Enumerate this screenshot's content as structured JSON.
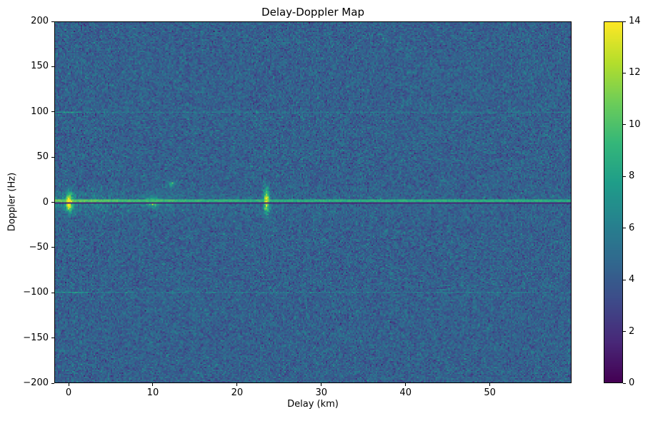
{
  "figure": {
    "background": "#ffffff"
  },
  "chart_data": {
    "type": "heatmap",
    "title": "Delay-Doppler Map",
    "xlabel": "Delay (km)",
    "ylabel": "Doppler (Hz)",
    "xlim": [
      -1.7,
      59.7
    ],
    "ylim": [
      -200,
      200
    ],
    "xticks": {
      "values": [
        0,
        10,
        20,
        30,
        40,
        50
      ],
      "labels": [
        "0",
        "10",
        "20",
        "30",
        "40",
        "50"
      ]
    },
    "yticks": {
      "values": [
        200,
        150,
        100,
        50,
        0,
        -50,
        -100,
        -150,
        -200
      ],
      "labels": [
        "200",
        "150",
        "100",
        "50",
        "0",
        "−50",
        "−100",
        "−150",
        "−200"
      ]
    },
    "colormap": "viridis",
    "colorbar": {
      "min": 0,
      "max": 14,
      "tick_values": [
        14,
        12,
        10,
        8,
        6,
        4,
        2,
        0
      ],
      "tick_labels": [
        "14",
        "12",
        "10",
        "8",
        "6",
        "4",
        "2",
        "0"
      ]
    },
    "grid": {
      "cols": 362,
      "rows": 254
    },
    "noise": {
      "mean": 4.3,
      "std": 0.85,
      "seed": 7
    },
    "features": [
      {
        "kind": "haze",
        "name": "clutter-doppler-spread",
        "doppler": 0,
        "sigma_doppler": 8,
        "amp": 2.0,
        "decay_km": 18
      },
      {
        "kind": "hline",
        "name": "doppler-ambiguity-line-positive",
        "doppler": 100,
        "amp": 1.5,
        "spot_delay": 0,
        "spot_amp": 2.4
      },
      {
        "kind": "hline",
        "name": "doppler-ambiguity-line-negative",
        "doppler": -100,
        "amp": 1.5,
        "spot_delay": 0,
        "spot_amp": 2.4
      },
      {
        "kind": "blob",
        "name": "direct-path-return",
        "delay": 0,
        "doppler": 0,
        "sigma_delay": 0.3,
        "sigma_doppler": 7.0,
        "amp": 9.5
      },
      {
        "kind": "blob",
        "name": "clutter-patch",
        "delay": 10,
        "doppler": 0.5,
        "sigma_delay": 0.6,
        "sigma_doppler": 3.5,
        "amp": 5.5
      },
      {
        "kind": "blob",
        "name": "small-echo",
        "delay": 12.2,
        "doppler": 20,
        "sigma_delay": 0.35,
        "sigma_doppler": 2.5,
        "amp": 4.0
      },
      {
        "kind": "blob",
        "name": "target-echo",
        "delay": 23.5,
        "doppler": 2,
        "sigma_delay": 0.25,
        "sigma_doppler": 9.0,
        "amp": 9.2
      },
      {
        "kind": "ridge",
        "name": "zero-doppler-clutter-ridge",
        "doppler": 1.6,
        "base": 9.8,
        "boost": 2.6,
        "decay_km": 12,
        "jitter": 1.7,
        "sigma_doppler": 1.2
      },
      {
        "kind": "notch",
        "name": "zero-doppler-notch",
        "doppler": -0.9,
        "value": 1.2
      }
    ]
  }
}
